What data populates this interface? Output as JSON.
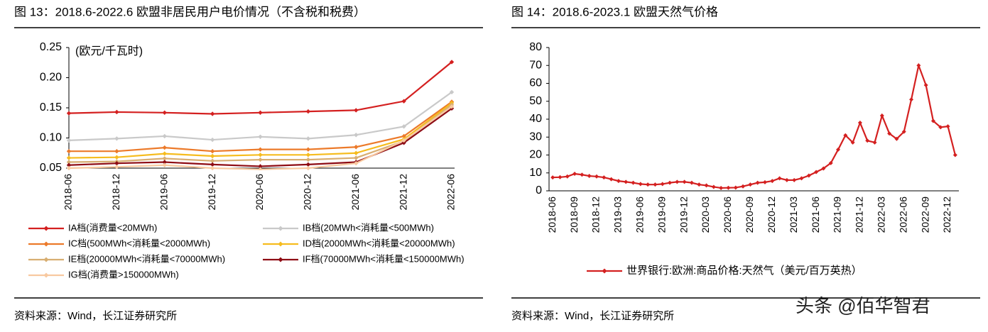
{
  "chart_data": [
    {
      "type": "line",
      "title": "图 13：2018.6-2022.6 欧盟非居民用户电价情况（不含税和税费）",
      "annotation": "(欧元/千瓦时)",
      "source": "资料来源：Wind，长江证券研究所",
      "categories": [
        "2018-06",
        "2018-12",
        "2019-06",
        "2019-12",
        "2020-06",
        "2020-12",
        "2021-06",
        "2021-12",
        "2022-06"
      ],
      "ylim": [
        0.05,
        0.25
      ],
      "yticks": [
        0.05,
        {
          "value": 0.1,
          "label": "0.10"
        },
        0.15,
        {
          "value": 0.2,
          "label": "0.20"
        },
        0.25
      ],
      "series": [
        {
          "name": "IA档(消费量<20MWh)",
          "color": "#d42020",
          "values": [
            0.141,
            0.143,
            0.142,
            0.14,
            0.142,
            0.144,
            0.146,
            0.161,
            0.226
          ]
        },
        {
          "name": "IB档(20MWh<消耗量<500MWh)",
          "color": "#c9c9c9",
          "values": [
            0.096,
            0.099,
            0.103,
            0.097,
            0.102,
            0.099,
            0.105,
            0.119,
            0.176
          ]
        },
        {
          "name": "IC档(500MWh<消耗量<2000MWh)",
          "color": "#ec7a2a",
          "values": [
            0.078,
            0.078,
            0.084,
            0.078,
            0.081,
            0.081,
            0.085,
            0.103,
            0.16
          ]
        },
        {
          "name": "ID档(2000MWh<消耗量<20000MWh)",
          "color": "#f6bc1e",
          "values": [
            0.067,
            0.068,
            0.074,
            0.07,
            0.072,
            0.072,
            0.075,
            0.098,
            0.158
          ]
        },
        {
          "name": "IE档(20000MWh<消耗量<70000MWh)",
          "color": "#d8ae72",
          "values": [
            0.06,
            0.061,
            0.066,
            0.062,
            0.064,
            0.064,
            0.067,
            0.095,
            0.155
          ]
        },
        {
          "name": "IF档(70000MWh<消耗量<150000MWh)",
          "color": "#8e0c14",
          "values": [
            0.055,
            0.058,
            0.06,
            0.056,
            0.053,
            0.056,
            0.06,
            0.092,
            0.149
          ]
        },
        {
          "name": "IG档(消费量>150000MWh)",
          "color": "#f8c9a0",
          "values": [
            0.05,
            0.052,
            0.055,
            0.05,
            0.048,
            0.05,
            0.058,
            0.096,
            0.152
          ]
        }
      ]
    },
    {
      "type": "line",
      "title": "图 14：2018.6-2023.1 欧盟天然气价格",
      "source": "资料来源：Wind，长江证券研究所",
      "categories": [
        "2018-06",
        null,
        null,
        "2018-09",
        null,
        null,
        "2018-12",
        null,
        null,
        "2019-03",
        null,
        null,
        "2019-06",
        null,
        null,
        "2019-09",
        null,
        null,
        "2019-12",
        null,
        null,
        "2020-03",
        null,
        null,
        "2020-06",
        null,
        null,
        "2020-09",
        null,
        null,
        "2020-12",
        null,
        null,
        "2021-03",
        null,
        null,
        "2021-06",
        null,
        null,
        "2021-09",
        null,
        null,
        "2021-12",
        null,
        null,
        "2022-03",
        null,
        null,
        "2022-06",
        null,
        null,
        "2022-09",
        null,
        null,
        "2022-12",
        null
      ],
      "ylim": [
        0,
        80
      ],
      "yticks": [
        0,
        10,
        20,
        30,
        40,
        50,
        60,
        70,
        80
      ],
      "series": [
        {
          "name": "世界银行:欧洲:商品价格:天然气（美元/百万英热）",
          "color": "#d42020",
          "values": [
            7.5,
            7.6,
            8.0,
            9.5,
            9.0,
            8.3,
            8.0,
            7.5,
            6.5,
            5.5,
            5.0,
            4.5,
            3.8,
            3.5,
            3.5,
            3.8,
            4.5,
            5.0,
            5.0,
            4.5,
            3.5,
            3.0,
            2.2,
            1.6,
            1.7,
            1.8,
            2.5,
            3.5,
            4.5,
            4.8,
            5.5,
            7.0,
            6.0,
            6.0,
            7.0,
            8.5,
            10.5,
            12.5,
            15.5,
            23.0,
            31.0,
            27.0,
            38.0,
            28.0,
            27.0,
            42.0,
            32.0,
            29.0,
            33.0,
            51.0,
            70.0,
            59.0,
            39.0,
            35.5,
            36.0,
            20.0
          ]
        }
      ]
    }
  ],
  "watermark": "头条 @佰华智君"
}
